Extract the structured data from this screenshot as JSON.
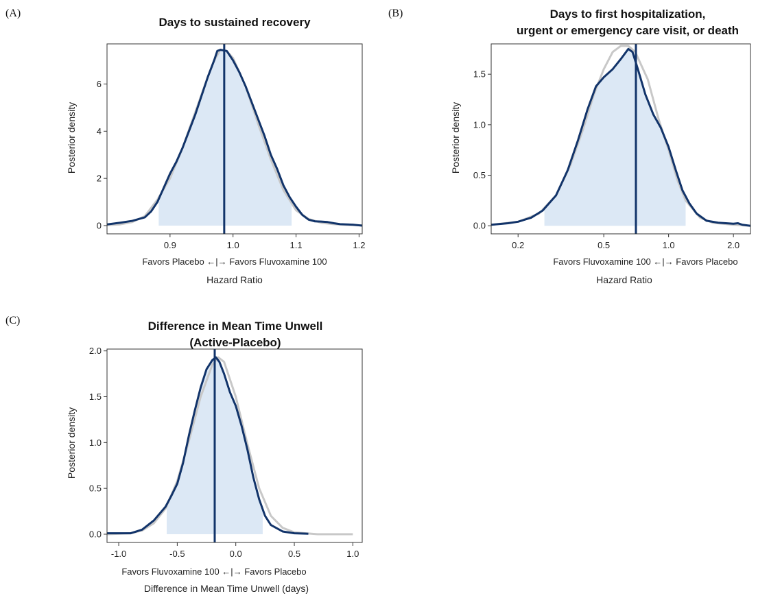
{
  "colors": {
    "posterior_line": "#12346a",
    "prior_line": "#c8c8c8",
    "interval_fill": "#dce8f5",
    "median_line": "#12346a",
    "frame": "#333333"
  },
  "chart_data": [
    {
      "panel_label": "(A)",
      "type": "area",
      "title_lines": [
        "Days to sustained recovery"
      ],
      "xlabel": "Hazard Ratio",
      "direction_note": "Favors Placebo ←|→ Favors Fluvoxamine 100",
      "ylabel": "Posterior density",
      "x_scale": "linear",
      "xlim": [
        0.8,
        1.205
      ],
      "ylim": [
        -0.35,
        7.7
      ],
      "x_ticks": [
        {
          "value": 0.9,
          "label": "0.9"
        },
        {
          "value": 1.0,
          "label": "1.0"
        },
        {
          "value": 1.1,
          "label": "1.1"
        },
        {
          "value": 1.2,
          "label": "1.2"
        }
      ],
      "y_ticks": [
        {
          "value": 0,
          "label": "0"
        },
        {
          "value": 2,
          "label": "2"
        },
        {
          "value": 4,
          "label": "4"
        },
        {
          "value": 6,
          "label": "6"
        }
      ],
      "credible_interval": [
        0.882,
        1.093
      ],
      "median": 0.986,
      "series": [
        {
          "role": "prior",
          "points": [
            [
              0.8,
              0.02
            ],
            [
              0.82,
              0.05
            ],
            [
              0.84,
              0.15
            ],
            [
              0.86,
              0.4
            ],
            [
              0.88,
              1.1
            ],
            [
              0.9,
              2.0
            ],
            [
              0.92,
              3.3
            ],
            [
              0.94,
              4.8
            ],
            [
              0.96,
              6.3
            ],
            [
              0.97,
              7.0
            ],
            [
              0.98,
              7.45
            ],
            [
              0.99,
              7.4
            ],
            [
              1.0,
              7.1
            ],
            [
              1.02,
              5.9
            ],
            [
              1.04,
              4.3
            ],
            [
              1.06,
              2.8
            ],
            [
              1.08,
              1.5
            ],
            [
              1.1,
              0.65
            ],
            [
              1.12,
              0.28
            ],
            [
              1.14,
              0.12
            ],
            [
              1.16,
              0.06
            ],
            [
              1.18,
              0.03
            ],
            [
              1.205,
              0.01
            ]
          ]
        },
        {
          "role": "posterior",
          "points": [
            [
              0.8,
              0.05
            ],
            [
              0.82,
              0.12
            ],
            [
              0.84,
              0.2
            ],
            [
              0.86,
              0.35
            ],
            [
              0.87,
              0.6
            ],
            [
              0.88,
              1.0
            ],
            [
              0.89,
              1.6
            ],
            [
              0.9,
              2.2
            ],
            [
              0.91,
              2.7
            ],
            [
              0.92,
              3.3
            ],
            [
              0.93,
              4.0
            ],
            [
              0.94,
              4.7
            ],
            [
              0.95,
              5.5
            ],
            [
              0.96,
              6.3
            ],
            [
              0.97,
              7.0
            ],
            [
              0.975,
              7.4
            ],
            [
              0.98,
              7.45
            ],
            [
              0.99,
              7.4
            ],
            [
              1.0,
              7.0
            ],
            [
              1.01,
              6.5
            ],
            [
              1.02,
              5.9
            ],
            [
              1.03,
              5.2
            ],
            [
              1.04,
              4.5
            ],
            [
              1.05,
              3.8
            ],
            [
              1.06,
              3.0
            ],
            [
              1.07,
              2.4
            ],
            [
              1.08,
              1.7
            ],
            [
              1.09,
              1.2
            ],
            [
              1.1,
              0.8
            ],
            [
              1.11,
              0.45
            ],
            [
              1.12,
              0.25
            ],
            [
              1.13,
              0.18
            ],
            [
              1.14,
              0.17
            ],
            [
              1.15,
              0.15
            ],
            [
              1.16,
              0.1
            ],
            [
              1.17,
              0.06
            ],
            [
              1.18,
              0.05
            ],
            [
              1.19,
              0.04
            ],
            [
              1.205,
              0.0
            ]
          ]
        }
      ]
    },
    {
      "panel_label": "(B)",
      "type": "area",
      "title_lines": [
        "Days to first hospitalization,",
        "urgent or emergency care visit, or death"
      ],
      "xlabel": "Hazard Ratio",
      "direction_note": "Favors Fluvoxamine 100 ←|→ Favors Placebo",
      "ylabel": "Posterior density",
      "x_scale": "log",
      "xlim": [
        0.15,
        2.4
      ],
      "ylim": [
        -0.08,
        1.8
      ],
      "x_ticks": [
        {
          "value": 0.2,
          "label": "0.2"
        },
        {
          "value": 0.5,
          "label": "0.5"
        },
        {
          "value": 1.0,
          "label": "1.0"
        },
        {
          "value": 2.0,
          "label": "2.0"
        }
      ],
      "y_ticks": [
        {
          "value": 0.0,
          "label": "0.0"
        },
        {
          "value": 0.5,
          "label": "0.5"
        },
        {
          "value": 1.0,
          "label": "1.0"
        },
        {
          "value": 1.5,
          "label": "1.5"
        }
      ],
      "credible_interval": [
        0.265,
        1.2
      ],
      "median": 0.705,
      "series": [
        {
          "role": "prior",
          "points": [
            [
              0.15,
              0.01
            ],
            [
              0.2,
              0.04
            ],
            [
              0.25,
              0.12
            ],
            [
              0.3,
              0.3
            ],
            [
              0.35,
              0.6
            ],
            [
              0.4,
              0.95
            ],
            [
              0.45,
              1.3
            ],
            [
              0.5,
              1.55
            ],
            [
              0.55,
              1.72
            ],
            [
              0.6,
              1.78
            ],
            [
              0.65,
              1.78
            ],
            [
              0.7,
              1.72
            ],
            [
              0.8,
              1.45
            ],
            [
              0.9,
              1.05
            ],
            [
              1.0,
              0.75
            ],
            [
              1.1,
              0.45
            ],
            [
              1.2,
              0.25
            ],
            [
              1.4,
              0.08
            ],
            [
              1.6,
              0.03
            ],
            [
              2.0,
              0.01
            ],
            [
              2.4,
              0.0
            ]
          ]
        },
        {
          "role": "posterior",
          "points": [
            [
              0.15,
              0.01
            ],
            [
              0.18,
              0.025
            ],
            [
              0.2,
              0.04
            ],
            [
              0.23,
              0.08
            ],
            [
              0.26,
              0.15
            ],
            [
              0.3,
              0.3
            ],
            [
              0.34,
              0.55
            ],
            [
              0.38,
              0.85
            ],
            [
              0.42,
              1.15
            ],
            [
              0.46,
              1.38
            ],
            [
              0.5,
              1.47
            ],
            [
              0.55,
              1.55
            ],
            [
              0.6,
              1.65
            ],
            [
              0.65,
              1.75
            ],
            [
              0.68,
              1.72
            ],
            [
              0.72,
              1.55
            ],
            [
              0.78,
              1.3
            ],
            [
              0.85,
              1.1
            ],
            [
              0.92,
              0.97
            ],
            [
              1.0,
              0.78
            ],
            [
              1.08,
              0.55
            ],
            [
              1.16,
              0.35
            ],
            [
              1.25,
              0.22
            ],
            [
              1.35,
              0.12
            ],
            [
              1.5,
              0.05
            ],
            [
              1.7,
              0.03
            ],
            [
              2.0,
              0.02
            ],
            [
              2.1,
              0.025
            ],
            [
              2.2,
              0.01
            ],
            [
              2.4,
              0.0
            ]
          ]
        }
      ]
    },
    {
      "panel_label": "(C)",
      "type": "area",
      "title_lines": [
        "Difference in Mean Time Unwell",
        "(Active-Placebo)"
      ],
      "xlabel": "Difference in Mean Time Unwell (days)",
      "direction_note": "Favors Fluvoxamine 100 ←|→ Favors Placebo",
      "ylabel": "Posterior density",
      "x_scale": "linear",
      "xlim": [
        -1.1,
        1.08
      ],
      "ylim": [
        -0.09,
        2.02
      ],
      "x_ticks": [
        {
          "value": -1.0,
          "label": "-1.0"
        },
        {
          "value": -0.5,
          "label": "-0.5"
        },
        {
          "value": 0.0,
          "label": "0.0"
        },
        {
          "value": 0.5,
          "label": "0.5"
        },
        {
          "value": 1.0,
          "label": "1.0"
        }
      ],
      "y_ticks": [
        {
          "value": 0.0,
          "label": "0.0"
        },
        {
          "value": 0.5,
          "label": "0.5"
        },
        {
          "value": 1.0,
          "label": "1.0"
        },
        {
          "value": 1.5,
          "label": "1.5"
        },
        {
          "value": 2.0,
          "label": "2.0"
        }
      ],
      "credible_interval": [
        -0.59,
        0.23
      ],
      "median": -0.18,
      "series": [
        {
          "role": "prior",
          "points": [
            [
              -1.1,
              0.0
            ],
            [
              -0.9,
              0.01
            ],
            [
              -0.8,
              0.04
            ],
            [
              -0.7,
              0.12
            ],
            [
              -0.6,
              0.28
            ],
            [
              -0.5,
              0.58
            ],
            [
              -0.4,
              1.02
            ],
            [
              -0.3,
              1.5
            ],
            [
              -0.2,
              1.85
            ],
            [
              -0.15,
              1.93
            ],
            [
              -0.1,
              1.88
            ],
            [
              0.0,
              1.5
            ],
            [
              0.1,
              0.98
            ],
            [
              0.2,
              0.5
            ],
            [
              0.3,
              0.2
            ],
            [
              0.4,
              0.07
            ],
            [
              0.5,
              0.02
            ],
            [
              0.6,
              0.01
            ],
            [
              0.7,
              0.0
            ],
            [
              1.0,
              0.0
            ]
          ]
        },
        {
          "role": "posterior",
          "points": [
            [
              -1.1,
              0.01
            ],
            [
              -0.9,
              0.01
            ],
            [
              -0.8,
              0.05
            ],
            [
              -0.7,
              0.15
            ],
            [
              -0.6,
              0.3
            ],
            [
              -0.55,
              0.42
            ],
            [
              -0.5,
              0.55
            ],
            [
              -0.45,
              0.78
            ],
            [
              -0.4,
              1.08
            ],
            [
              -0.35,
              1.35
            ],
            [
              -0.3,
              1.6
            ],
            [
              -0.25,
              1.8
            ],
            [
              -0.2,
              1.9
            ],
            [
              -0.17,
              1.93
            ],
            [
              -0.14,
              1.88
            ],
            [
              -0.1,
              1.75
            ],
            [
              -0.05,
              1.55
            ],
            [
              0.0,
              1.4
            ],
            [
              0.05,
              1.18
            ],
            [
              0.1,
              0.92
            ],
            [
              0.15,
              0.62
            ],
            [
              0.2,
              0.38
            ],
            [
              0.25,
              0.2
            ],
            [
              0.3,
              0.1
            ],
            [
              0.4,
              0.03
            ],
            [
              0.5,
              0.01
            ],
            [
              0.62,
              0.005
            ]
          ]
        }
      ]
    }
  ]
}
